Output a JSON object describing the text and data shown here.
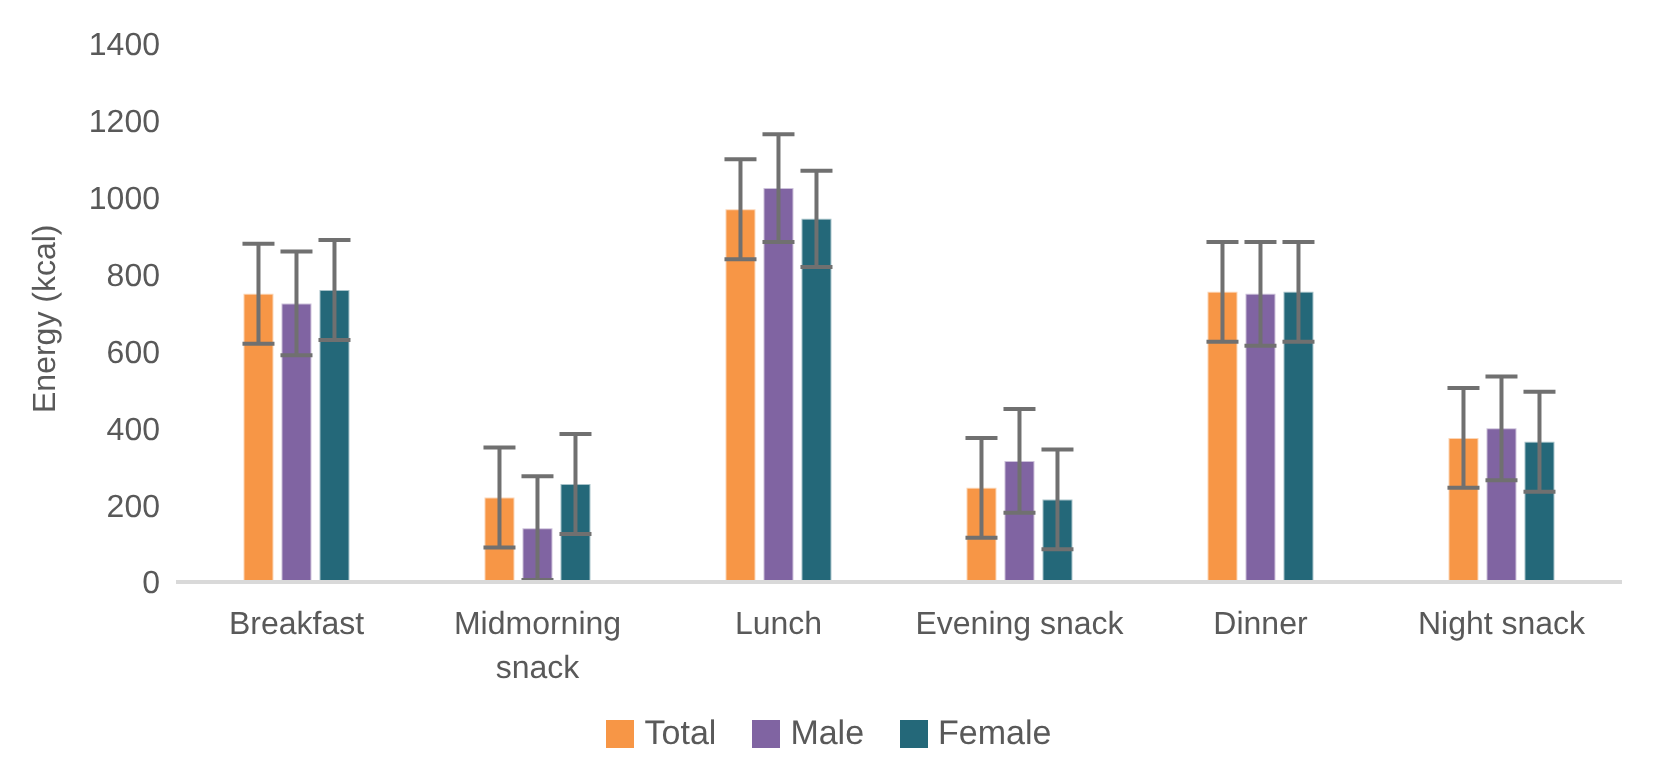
{
  "chart_data": {
    "type": "bar",
    "ylabel": "Energy (kcal)",
    "categories": [
      "Breakfast",
      "Midmorning snack",
      "Lunch",
      "Evening snack",
      "Dinner",
      "Night snack"
    ],
    "series": [
      {
        "name": "Total",
        "color": "#f79646",
        "values": [
          750,
          220,
          970,
          245,
          755,
          375
        ],
        "errors": [
          130,
          130,
          130,
          130,
          130,
          130
        ]
      },
      {
        "name": "Male",
        "color": "#8064a2",
        "values": [
          725,
          140,
          1025,
          315,
          750,
          400
        ],
        "errors": [
          135,
          135,
          140,
          135,
          135,
          135
        ]
      },
      {
        "name": "Female",
        "color": "#246879",
        "values": [
          760,
          255,
          945,
          215,
          755,
          365
        ],
        "errors": [
          130,
          130,
          125,
          130,
          130,
          130
        ]
      }
    ],
    "ylim": [
      0,
      1400
    ],
    "yticks": [
      0,
      200,
      400,
      600,
      800,
      1000,
      1200,
      1400
    ],
    "grid": false,
    "legend": "bottom"
  }
}
